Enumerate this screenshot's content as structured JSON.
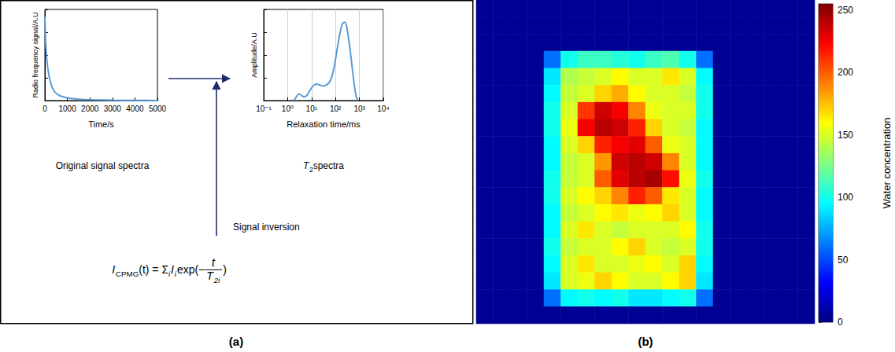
{
  "chart_data": [
    {
      "type": "line",
      "x": [
        0,
        20,
        50,
        100,
        150,
        200,
        300,
        400,
        500,
        700,
        1000,
        1500,
        2000,
        3000,
        4000,
        5000
      ],
      "values": [
        0.92,
        0.75,
        0.58,
        0.42,
        0.32,
        0.25,
        0.16,
        0.11,
        0.08,
        0.05,
        0.03,
        0.015,
        0.008,
        0.004,
        0.002,
        0.001
      ],
      "color": "#5b9bd5",
      "xlabel": "Time/s",
      "ylabel": "Radio frequency signal/A.U",
      "xlim": [
        0,
        5000
      ],
      "xticks": [
        0,
        1000,
        2000,
        3000,
        4000,
        5000
      ],
      "ylim": [
        0,
        1
      ],
      "yticks": [
        0,
        0.25,
        0.5,
        0.75,
        1
      ],
      "tick_labels": "x",
      "grid": false
    },
    {
      "type": "line",
      "x": [
        1.8,
        2.3,
        2.8,
        3.3,
        4,
        5,
        6.5,
        8,
        10,
        13,
        17,
        22,
        30,
        40,
        55,
        70,
        90,
        120,
        160,
        200,
        250,
        300,
        380,
        470,
        560,
        650,
        750,
        850
      ],
      "values": [
        0,
        0.04,
        0.07,
        0.07,
        0.05,
        0.04,
        0.06,
        0.1,
        0.14,
        0.17,
        0.18,
        0.17,
        0.16,
        0.17,
        0.2,
        0.26,
        0.38,
        0.58,
        0.76,
        0.85,
        0.86,
        0.8,
        0.62,
        0.42,
        0.25,
        0.12,
        0.04,
        0
      ],
      "color": "#5b9bd5",
      "xlabel": "Relaxation time/ms",
      "ylabel": "Amplitude/A.U",
      "log": "x",
      "xlim": [
        0.1,
        10000
      ],
      "xticks": [
        {
          "value": 0.1,
          "label": "10⁻¹"
        },
        {
          "value": 1,
          "label": "10⁰"
        },
        {
          "value": 10,
          "label": "10¹"
        },
        {
          "value": 100,
          "label": "10²"
        },
        {
          "value": 1000,
          "label": "10³"
        },
        {
          "value": 10000,
          "label": "10⁴"
        }
      ],
      "ylim": [
        0,
        1
      ],
      "yticks": [
        0,
        0.25,
        0.5,
        0.75,
        1
      ],
      "tick_labels": "x",
      "grid": true
    },
    {
      "type": "heatmap",
      "tick_labels": false,
      "color_label": "Water concentration",
      "color_range": [
        0,
        255
      ],
      "color_ticks": [
        0,
        50,
        100,
        150,
        200,
        250
      ],
      "cells": [
        [
          5,
          5,
          5,
          5,
          5,
          5,
          5,
          5,
          5,
          5,
          5,
          5,
          5,
          5,
          5,
          5,
          5,
          5,
          5,
          5
        ],
        [
          5,
          5,
          5,
          5,
          5,
          5,
          5,
          5,
          5,
          5,
          5,
          5,
          5,
          5,
          5,
          5,
          5,
          5,
          5,
          5
        ],
        [
          5,
          5,
          5,
          5,
          5,
          5,
          5,
          5,
          5,
          5,
          5,
          5,
          5,
          5,
          5,
          5,
          5,
          5,
          5,
          5
        ],
        [
          5,
          5,
          5,
          5,
          60,
          100,
          110,
          110,
          105,
          100,
          110,
          115,
          100,
          60,
          5,
          5,
          5,
          5,
          5,
          5
        ],
        [
          5,
          5,
          5,
          5,
          90,
          140,
          145,
          150,
          160,
          150,
          150,
          165,
          150,
          95,
          5,
          5,
          5,
          5,
          5,
          5
        ],
        [
          5,
          5,
          5,
          5,
          95,
          145,
          150,
          170,
          180,
          160,
          150,
          150,
          145,
          100,
          5,
          5,
          5,
          5,
          5,
          5
        ],
        [
          5,
          5,
          5,
          5,
          100,
          150,
          210,
          235,
          225,
          190,
          155,
          150,
          150,
          100,
          5,
          5,
          5,
          5,
          5,
          5
        ],
        [
          5,
          5,
          5,
          5,
          100,
          155,
          225,
          240,
          235,
          215,
          170,
          150,
          145,
          95,
          5,
          5,
          5,
          5,
          5,
          5
        ],
        [
          5,
          5,
          5,
          5,
          95,
          150,
          170,
          215,
          225,
          230,
          200,
          155,
          150,
          95,
          5,
          5,
          5,
          5,
          5,
          5
        ],
        [
          5,
          5,
          5,
          5,
          95,
          145,
          150,
          185,
          235,
          240,
          235,
          190,
          150,
          95,
          5,
          5,
          5,
          5,
          5,
          5
        ],
        [
          5,
          5,
          5,
          5,
          100,
          145,
          150,
          200,
          230,
          240,
          245,
          220,
          155,
          100,
          5,
          5,
          5,
          5,
          5,
          5
        ],
        [
          5,
          5,
          5,
          5,
          100,
          150,
          160,
          170,
          190,
          215,
          200,
          165,
          150,
          95,
          5,
          5,
          5,
          5,
          5,
          5
        ],
        [
          5,
          5,
          5,
          5,
          95,
          145,
          150,
          160,
          165,
          155,
          160,
          170,
          150,
          95,
          5,
          5,
          5,
          5,
          5,
          5
        ],
        [
          5,
          5,
          5,
          5,
          95,
          150,
          165,
          150,
          145,
          150,
          150,
          150,
          160,
          100,
          5,
          5,
          5,
          5,
          5,
          5
        ],
        [
          5,
          5,
          5,
          5,
          100,
          145,
          150,
          150,
          160,
          170,
          150,
          145,
          150,
          100,
          5,
          5,
          5,
          5,
          5,
          5
        ],
        [
          5,
          5,
          5,
          5,
          95,
          150,
          165,
          150,
          150,
          155,
          160,
          150,
          170,
          95,
          5,
          5,
          5,
          5,
          5,
          5
        ],
        [
          5,
          5,
          5,
          5,
          90,
          150,
          155,
          170,
          160,
          150,
          150,
          160,
          170,
          90,
          5,
          5,
          5,
          5,
          5,
          5
        ],
        [
          5,
          5,
          5,
          5,
          60,
          95,
          100,
          95,
          100,
          90,
          90,
          95,
          100,
          60,
          5,
          5,
          5,
          5,
          5,
          5
        ],
        [
          5,
          5,
          5,
          5,
          5,
          5,
          5,
          5,
          5,
          5,
          5,
          5,
          5,
          5,
          5,
          5,
          5,
          5,
          5,
          5
        ]
      ]
    }
  ],
  "captions": {
    "signal": "Original signal spectra",
    "t2": [
      {
        "text": "T",
        "style": "italic"
      },
      {
        "text": "2",
        "style": "sub"
      },
      {
        "text": " spectra"
      }
    ],
    "inversion": "Signal inversion",
    "formula": [
      {
        "text": "I",
        "style": "italic"
      },
      {
        "text": "CPMG",
        "style": "sub"
      },
      {
        "text": "(t) = Σ"
      },
      {
        "text": "i",
        "style": "sub-italic"
      },
      {
        "text": "I",
        "style": "italic"
      },
      {
        "text": "i",
        "style": "sub-italic"
      },
      {
        "text": " exp(−"
      },
      {
        "fraction": {
          "num": [
            {
              "text": "t",
              "style": "italic"
            }
          ],
          "den": [
            {
              "text": "T",
              "style": "italic"
            },
            {
              "text": "2i",
              "style": "sub-italic"
            }
          ]
        }
      },
      {
        "text": ")"
      }
    ],
    "panel_a": "(a)",
    "panel_b": "(b)"
  }
}
